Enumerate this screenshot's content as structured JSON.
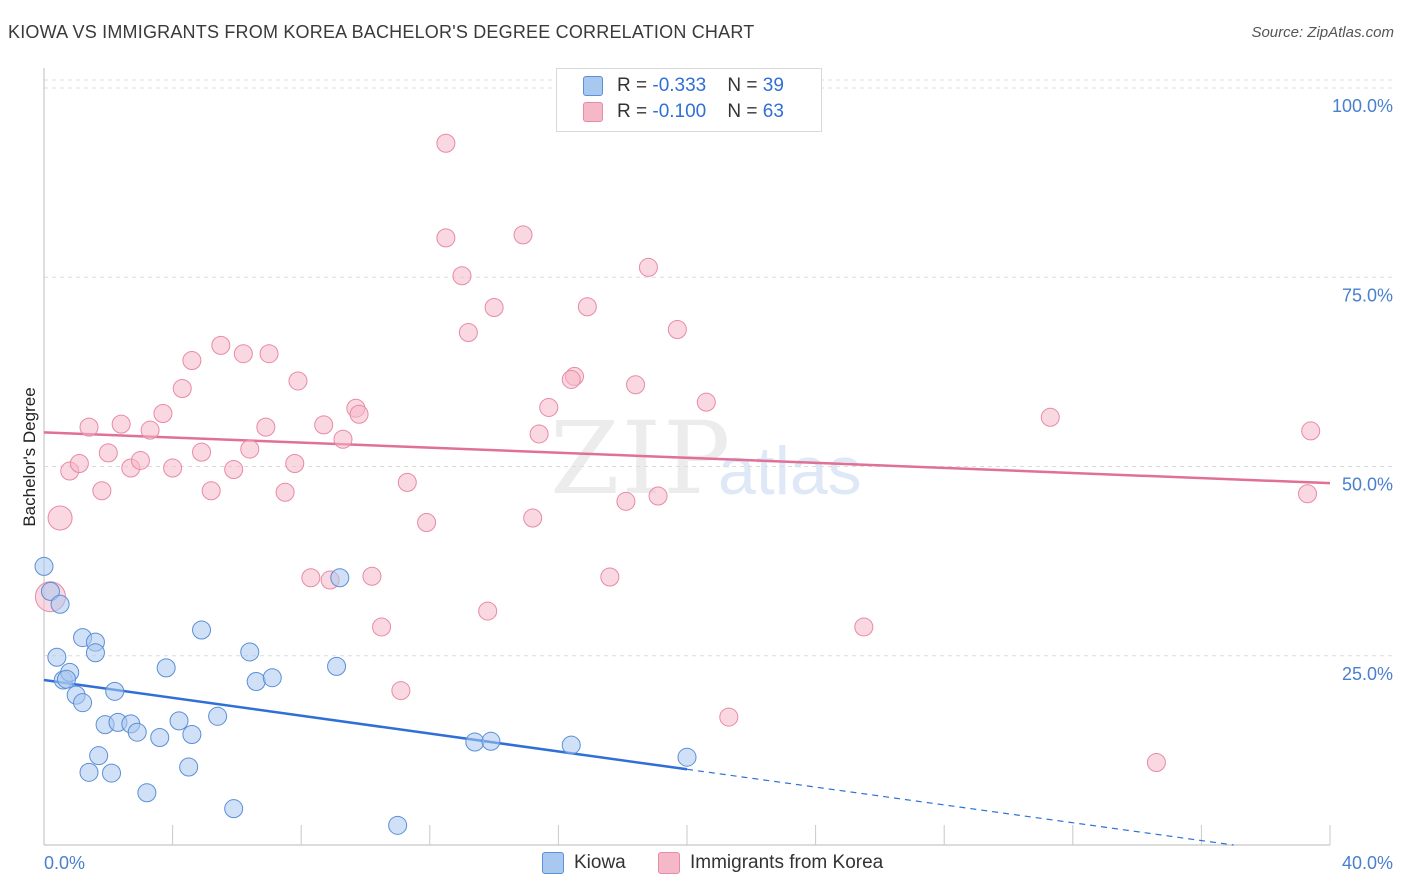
{
  "header": {
    "title": "KIOWA VS IMMIGRANTS FROM KOREA BACHELOR'S DEGREE CORRELATION CHART",
    "source": "Source: ZipAtlas.com"
  },
  "watermark": {
    "zip": "ZIP",
    "atlas": "atlas"
  },
  "legend": {
    "rows": [
      {
        "r_label": "R = ",
        "r_value": "-0.333",
        "n_label": "N = ",
        "n_value": "39",
        "color": "#a9c8f0"
      },
      {
        "r_label": "R = ",
        "r_value": "-0.100",
        "n_label": "N = ",
        "n_value": "63",
        "color": "#f5b8c8"
      }
    ]
  },
  "bottom_legend": {
    "kiowa": "Kiowa",
    "korea": "Immigrants from Korea"
  },
  "chart_data": {
    "type": "scatter",
    "title": "KIOWA VS IMMIGRANTS FROM KOREA BACHELOR'S DEGREE CORRELATION CHART",
    "xlabel": "",
    "ylabel": "Bachelor's Degree",
    "xlim": [
      0,
      40
    ],
    "ylim": [
      0,
      100
    ],
    "x_tick_labels": [
      "0.0%",
      "40.0%"
    ],
    "y_ticks": [
      25,
      50,
      75,
      100
    ],
    "y_tick_labels": [
      "25.0%",
      "50.0%",
      "75.0%",
      "100.0%"
    ],
    "grid": true,
    "series": [
      {
        "name": "Kiowa",
        "color": "#a9c8f0",
        "stroke": "#5b8fd6",
        "trend_color": "#2f6fd6",
        "trend": {
          "x0": 0,
          "y0": 21.8,
          "x1": 20,
          "y1": 10.0,
          "dashed_to_x": 37,
          "dashed_to_y": 0
        },
        "points": [
          [
            0.0,
            36.8
          ],
          [
            0.2,
            33.5
          ],
          [
            0.5,
            31.8
          ],
          [
            0.4,
            24.8
          ],
          [
            0.6,
            21.8
          ],
          [
            0.8,
            22.8
          ],
          [
            0.7,
            21.9
          ],
          [
            1.0,
            19.8
          ],
          [
            1.2,
            18.8
          ],
          [
            1.2,
            27.4
          ],
          [
            1.6,
            26.8
          ],
          [
            1.6,
            25.4
          ],
          [
            1.4,
            9.6
          ],
          [
            1.7,
            11.8
          ],
          [
            1.9,
            15.9
          ],
          [
            2.1,
            9.5
          ],
          [
            2.2,
            20.3
          ],
          [
            2.3,
            16.2
          ],
          [
            2.7,
            16.0
          ],
          [
            2.9,
            14.9
          ],
          [
            3.2,
            6.9
          ],
          [
            3.6,
            14.2
          ],
          [
            3.8,
            23.4
          ],
          [
            4.2,
            16.4
          ],
          [
            4.5,
            10.3
          ],
          [
            4.6,
            14.6
          ],
          [
            4.9,
            28.4
          ],
          [
            5.4,
            17.0
          ],
          [
            5.9,
            4.8
          ],
          [
            6.4,
            25.5
          ],
          [
            6.6,
            21.6
          ],
          [
            7.1,
            22.1
          ],
          [
            9.1,
            23.6
          ],
          [
            9.2,
            35.3
          ],
          [
            11.0,
            2.6
          ],
          [
            13.4,
            13.6
          ],
          [
            13.9,
            13.7
          ],
          [
            16.4,
            13.2
          ],
          [
            20.0,
            11.6
          ]
        ]
      },
      {
        "name": "Immigrants from Korea",
        "color": "#f5b8c8",
        "stroke": "#e88aa6",
        "trend_color": "#e07095",
        "trend": {
          "x0": 0,
          "y0": 54.5,
          "x1": 40,
          "y1": 47.8
        },
        "points": [
          [
            0.2,
            32.8
          ],
          [
            0.5,
            43.2
          ],
          [
            0.8,
            49.4
          ],
          [
            1.1,
            50.4
          ],
          [
            1.4,
            55.2
          ],
          [
            1.8,
            46.8
          ],
          [
            2.0,
            51.8
          ],
          [
            2.4,
            55.6
          ],
          [
            2.7,
            49.8
          ],
          [
            3.0,
            50.8
          ],
          [
            3.3,
            54.8
          ],
          [
            3.7,
            57.0
          ],
          [
            4.0,
            49.8
          ],
          [
            4.3,
            60.3
          ],
          [
            4.6,
            64.0
          ],
          [
            4.9,
            51.9
          ],
          [
            5.2,
            46.8
          ],
          [
            5.5,
            66.0
          ],
          [
            5.9,
            49.6
          ],
          [
            6.2,
            64.9
          ],
          [
            6.4,
            52.3
          ],
          [
            6.9,
            55.2
          ],
          [
            7.0,
            64.9
          ],
          [
            7.5,
            46.6
          ],
          [
            7.8,
            50.4
          ],
          [
            7.9,
            61.3
          ],
          [
            8.3,
            35.3
          ],
          [
            8.7,
            55.5
          ],
          [
            8.9,
            35.0
          ],
          [
            9.3,
            53.6
          ],
          [
            9.7,
            57.7
          ],
          [
            9.8,
            56.9
          ],
          [
            10.2,
            35.5
          ],
          [
            10.5,
            28.8
          ],
          [
            11.1,
            20.4
          ],
          [
            11.3,
            47.9
          ],
          [
            11.9,
            42.6
          ],
          [
            12.5,
            92.7
          ],
          [
            12.5,
            80.2
          ],
          [
            13.0,
            75.2
          ],
          [
            13.2,
            67.7
          ],
          [
            13.8,
            30.9
          ],
          [
            14.0,
            71.0
          ],
          [
            14.9,
            80.6
          ],
          [
            15.2,
            43.2
          ],
          [
            15.4,
            54.3
          ],
          [
            15.7,
            57.8
          ],
          [
            16.5,
            61.9
          ],
          [
            16.9,
            71.1
          ],
          [
            17.6,
            35.4
          ],
          [
            18.1,
            45.4
          ],
          [
            18.4,
            60.8
          ],
          [
            18.8,
            76.3
          ],
          [
            19.1,
            46.1
          ],
          [
            19.7,
            68.1
          ],
          [
            20.6,
            58.5
          ],
          [
            21.3,
            16.9
          ],
          [
            25.5,
            28.8
          ],
          [
            31.3,
            56.5
          ],
          [
            34.6,
            10.9
          ],
          [
            39.3,
            46.4
          ],
          [
            39.4,
            54.7
          ],
          [
            16.4,
            61.5
          ]
        ]
      }
    ]
  }
}
